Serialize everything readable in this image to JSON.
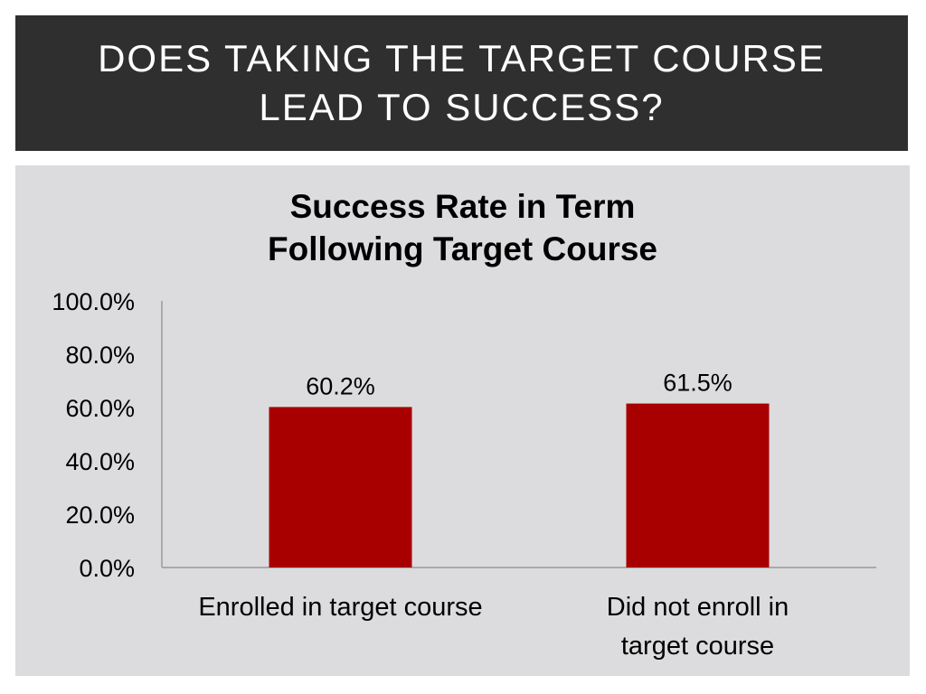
{
  "slide": {
    "title_lines": [
      "DOES TAKING THE TARGET COURSE",
      "LEAD TO SUCCESS?"
    ]
  },
  "chart_data": {
    "type": "bar",
    "title_lines": [
      "Success Rate in Term",
      "Following Target Course"
    ],
    "categories": [
      [
        "Enrolled in target course"
      ],
      [
        "Did not enroll in",
        "target course"
      ]
    ],
    "values": [
      60.2,
      61.5
    ],
    "data_labels": [
      "60.2%",
      "61.5%"
    ],
    "ylim": [
      0,
      100
    ],
    "yticks": [
      0,
      20,
      40,
      60,
      80,
      100
    ],
    "ytick_labels": [
      "0.0%",
      "20.0%",
      "40.0%",
      "60.0%",
      "80.0%",
      "100.0%"
    ],
    "grid": false,
    "legend": "none",
    "bar_color": "#a80000"
  }
}
